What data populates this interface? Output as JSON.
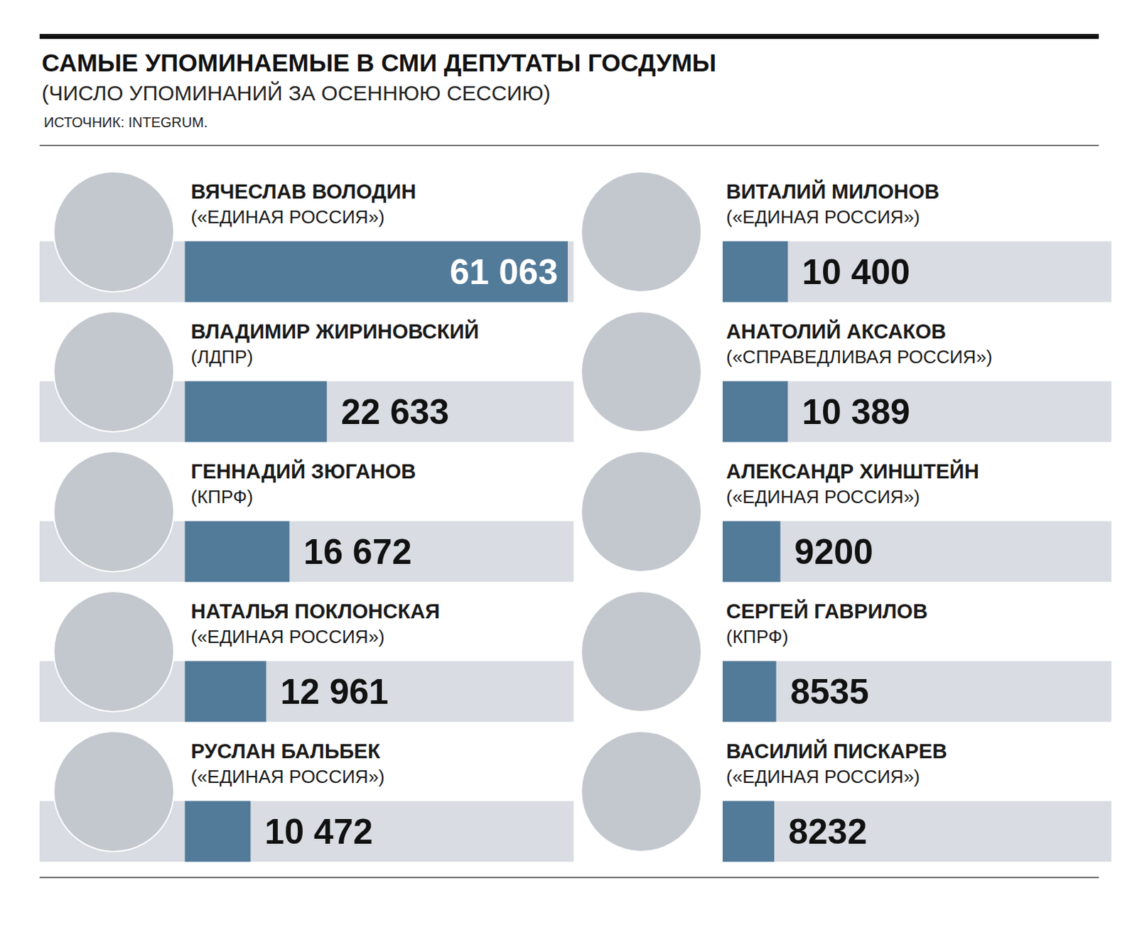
{
  "chart_data": {
    "type": "bar",
    "title": "САМЫЕ УПОМИНАЕМЫЕ В СМИ ДЕПУТАТЫ ГОСДУМЫ",
    "subtitle": "(ЧИСЛО УПОМИНАНИЙ ЗА ОСЕННЮЮ СЕССИЮ)",
    "source": "ИСТОЧНИК: INTEGRUM.",
    "categories": [
      "ВЯЧЕСЛАВ ВОЛОДИН",
      "ВЛАДИМИР ЖИРИНОВСКИЙ",
      "ГЕННАДИЙ ЗЮГАНОВ",
      "НАТАЛЬЯ ПОКЛОНСКАЯ",
      "РУСЛАН БАЛЬБЕК",
      "ВИТАЛИЙ МИЛОНОВ",
      "АНАТОЛИЙ АКСАКОВ",
      "АЛЕКСАНДР ХИНШТЕЙН",
      "СЕРГЕЙ ГАВРИЛОВ",
      "ВАСИЛИЙ ПИСКАРЕВ"
    ],
    "parties": [
      "(«ЕДИНАЯ РОССИЯ»)",
      "(ЛДПР)",
      "(КПРФ)",
      "(«ЕДИНАЯ РОССИЯ»)",
      "(«ЕДИНАЯ РОССИЯ»)",
      "(«ЕДИНАЯ РОССИЯ»)",
      "(«СПРАВЕДЛИВАЯ РОССИЯ»)",
      "(«ЕДИНАЯ РОССИЯ»)",
      "(КПРФ)",
      "(«ЕДИНАЯ РОССИЯ»)"
    ],
    "values": [
      61063,
      22633,
      16672,
      12961,
      10472,
      10400,
      10389,
      9200,
      8535,
      8232
    ],
    "value_labels": [
      "61 063",
      "22 633",
      "16 672",
      "12 961",
      "10 472",
      "10 400",
      "10 389",
      "9200",
      "8535",
      "8232"
    ],
    "color": "#527a99",
    "xlim": [
      0,
      62000
    ],
    "orientation": "horizontal",
    "data_labels": true,
    "tick_labels": false,
    "grid": false
  }
}
